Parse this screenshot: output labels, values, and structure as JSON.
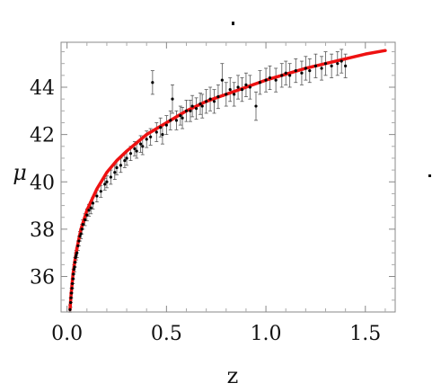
{
  "chart_data": {
    "type": "scatter",
    "title": "",
    "xlabel": "z",
    "ylabel": "μ",
    "xlim": [
      -0.03,
      1.65
    ],
    "ylim": [
      34.5,
      45.9
    ],
    "x_ticks": [
      0.0,
      0.5,
      1.0,
      1.5
    ],
    "x_tick_labels": [
      "0.0",
      "0.5",
      "1.0",
      "1.5"
    ],
    "y_ticks": [
      36,
      38,
      40,
      42,
      44
    ],
    "y_tick_labels": [
      "36",
      "38",
      "40",
      "42",
      "44"
    ],
    "grid": false,
    "legend": "none",
    "colors": {
      "points": "#000000",
      "errorbars": "#555555",
      "fit": "#ee1111"
    },
    "series": [
      {
        "type": "scatter-with-errorbars",
        "points": [
          {
            "x": 0.015,
            "y": 34.6,
            "err": 0.2
          },
          {
            "x": 0.018,
            "y": 34.9,
            "err": 0.2
          },
          {
            "x": 0.02,
            "y": 35.1,
            "err": 0.2
          },
          {
            "x": 0.022,
            "y": 35.3,
            "err": 0.2
          },
          {
            "x": 0.025,
            "y": 35.5,
            "err": 0.2
          },
          {
            "x": 0.027,
            "y": 35.7,
            "err": 0.2
          },
          {
            "x": 0.03,
            "y": 35.9,
            "err": 0.2
          },
          {
            "x": 0.032,
            "y": 36.1,
            "err": 0.2
          },
          {
            "x": 0.035,
            "y": 36.3,
            "err": 0.2
          },
          {
            "x": 0.038,
            "y": 36.4,
            "err": 0.2
          },
          {
            "x": 0.04,
            "y": 36.6,
            "err": 0.2
          },
          {
            "x": 0.043,
            "y": 36.8,
            "err": 0.2
          },
          {
            "x": 0.046,
            "y": 36.9,
            "err": 0.2
          },
          {
            "x": 0.05,
            "y": 37.0,
            "err": 0.2
          },
          {
            "x": 0.055,
            "y": 37.3,
            "err": 0.2
          },
          {
            "x": 0.06,
            "y": 37.5,
            "err": 0.2
          },
          {
            "x": 0.065,
            "y": 37.7,
            "err": 0.2
          },
          {
            "x": 0.07,
            "y": 37.8,
            "err": 0.2
          },
          {
            "x": 0.075,
            "y": 38.0,
            "err": 0.2
          },
          {
            "x": 0.08,
            "y": 38.2,
            "err": 0.2
          },
          {
            "x": 0.09,
            "y": 38.4,
            "err": 0.25
          },
          {
            "x": 0.1,
            "y": 38.6,
            "err": 0.25
          },
          {
            "x": 0.11,
            "y": 38.8,
            "err": 0.25
          },
          {
            "x": 0.12,
            "y": 38.9,
            "err": 0.25
          },
          {
            "x": 0.13,
            "y": 39.1,
            "err": 0.25
          },
          {
            "x": 0.15,
            "y": 39.4,
            "err": 0.25
          },
          {
            "x": 0.17,
            "y": 39.6,
            "err": 0.25
          },
          {
            "x": 0.19,
            "y": 39.9,
            "err": 0.25
          },
          {
            "x": 0.2,
            "y": 40.0,
            "err": 0.25
          },
          {
            "x": 0.22,
            "y": 40.2,
            "err": 0.3
          },
          {
            "x": 0.24,
            "y": 40.4,
            "err": 0.3
          },
          {
            "x": 0.25,
            "y": 40.6,
            "err": 0.3
          },
          {
            "x": 0.27,
            "y": 40.7,
            "err": 0.3
          },
          {
            "x": 0.29,
            "y": 40.9,
            "err": 0.3
          },
          {
            "x": 0.3,
            "y": 41.0,
            "err": 0.3
          },
          {
            "x": 0.32,
            "y": 41.2,
            "err": 0.3
          },
          {
            "x": 0.34,
            "y": 41.4,
            "err": 0.3
          },
          {
            "x": 0.35,
            "y": 41.3,
            "err": 0.3
          },
          {
            "x": 0.37,
            "y": 41.6,
            "err": 0.35
          },
          {
            "x": 0.38,
            "y": 41.5,
            "err": 0.35
          },
          {
            "x": 0.4,
            "y": 41.8,
            "err": 0.35
          },
          {
            "x": 0.42,
            "y": 41.9,
            "err": 0.35
          },
          {
            "x": 0.43,
            "y": 44.2,
            "err": 0.5
          },
          {
            "x": 0.45,
            "y": 42.1,
            "err": 0.4
          },
          {
            "x": 0.47,
            "y": 42.3,
            "err": 0.4
          },
          {
            "x": 0.48,
            "y": 42.0,
            "err": 0.4
          },
          {
            "x": 0.5,
            "y": 42.4,
            "err": 0.4
          },
          {
            "x": 0.52,
            "y": 42.6,
            "err": 0.4
          },
          {
            "x": 0.53,
            "y": 43.5,
            "err": 0.6
          },
          {
            "x": 0.55,
            "y": 42.6,
            "err": 0.4
          },
          {
            "x": 0.57,
            "y": 42.8,
            "err": 0.4
          },
          {
            "x": 0.58,
            "y": 42.7,
            "err": 0.45
          },
          {
            "x": 0.6,
            "y": 43.0,
            "err": 0.45
          },
          {
            "x": 0.62,
            "y": 43.0,
            "err": 0.45
          },
          {
            "x": 0.63,
            "y": 43.2,
            "err": 0.45
          },
          {
            "x": 0.65,
            "y": 43.1,
            "err": 0.45
          },
          {
            "x": 0.67,
            "y": 43.3,
            "err": 0.45
          },
          {
            "x": 0.68,
            "y": 43.2,
            "err": 0.5
          },
          {
            "x": 0.7,
            "y": 43.4,
            "err": 0.5
          },
          {
            "x": 0.72,
            "y": 43.5,
            "err": 0.5
          },
          {
            "x": 0.74,
            "y": 43.4,
            "err": 0.5
          },
          {
            "x": 0.76,
            "y": 43.6,
            "err": 0.5
          },
          {
            "x": 0.78,
            "y": 44.3,
            "err": 0.7
          },
          {
            "x": 0.8,
            "y": 43.7,
            "err": 0.5
          },
          {
            "x": 0.82,
            "y": 43.9,
            "err": 0.5
          },
          {
            "x": 0.84,
            "y": 43.7,
            "err": 0.5
          },
          {
            "x": 0.86,
            "y": 44.0,
            "err": 0.5
          },
          {
            "x": 0.88,
            "y": 43.9,
            "err": 0.5
          },
          {
            "x": 0.9,
            "y": 44.1,
            "err": 0.5
          },
          {
            "x": 0.92,
            "y": 44.0,
            "err": 0.5
          },
          {
            "x": 0.95,
            "y": 43.2,
            "err": 0.6
          },
          {
            "x": 0.97,
            "y": 44.2,
            "err": 0.5
          },
          {
            "x": 1.0,
            "y": 44.3,
            "err": 0.5
          },
          {
            "x": 1.02,
            "y": 44.4,
            "err": 0.5
          },
          {
            "x": 1.05,
            "y": 44.3,
            "err": 0.5
          },
          {
            "x": 1.08,
            "y": 44.5,
            "err": 0.5
          },
          {
            "x": 1.1,
            "y": 44.6,
            "err": 0.5
          },
          {
            "x": 1.12,
            "y": 44.5,
            "err": 0.5
          },
          {
            "x": 1.15,
            "y": 44.7,
            "err": 0.5
          },
          {
            "x": 1.18,
            "y": 44.6,
            "err": 0.5
          },
          {
            "x": 1.2,
            "y": 44.8,
            "err": 0.5
          },
          {
            "x": 1.22,
            "y": 44.7,
            "err": 0.5
          },
          {
            "x": 1.25,
            "y": 44.9,
            "err": 0.5
          },
          {
            "x": 1.28,
            "y": 44.8,
            "err": 0.5
          },
          {
            "x": 1.3,
            "y": 45.0,
            "err": 0.5
          },
          {
            "x": 1.33,
            "y": 44.9,
            "err": 0.5
          },
          {
            "x": 1.36,
            "y": 45.0,
            "err": 0.5
          },
          {
            "x": 1.38,
            "y": 45.1,
            "err": 0.5
          },
          {
            "x": 1.4,
            "y": 44.9,
            "err": 0.5
          }
        ]
      },
      {
        "type": "line",
        "x": [
          0.015,
          0.02,
          0.03,
          0.04,
          0.05,
          0.07,
          0.1,
          0.15,
          0.2,
          0.25,
          0.3,
          0.4,
          0.5,
          0.6,
          0.7,
          0.8,
          0.9,
          1.0,
          1.1,
          1.2,
          1.3,
          1.4,
          1.5,
          1.6
        ],
        "values": [
          34.6,
          35.2,
          36.1,
          36.7,
          37.2,
          38.0,
          38.8,
          39.7,
          40.4,
          40.9,
          41.3,
          42.0,
          42.5,
          43.0,
          43.4,
          43.7,
          44.0,
          44.3,
          44.55,
          44.8,
          45.0,
          45.2,
          45.4,
          45.55
        ]
      }
    ]
  }
}
